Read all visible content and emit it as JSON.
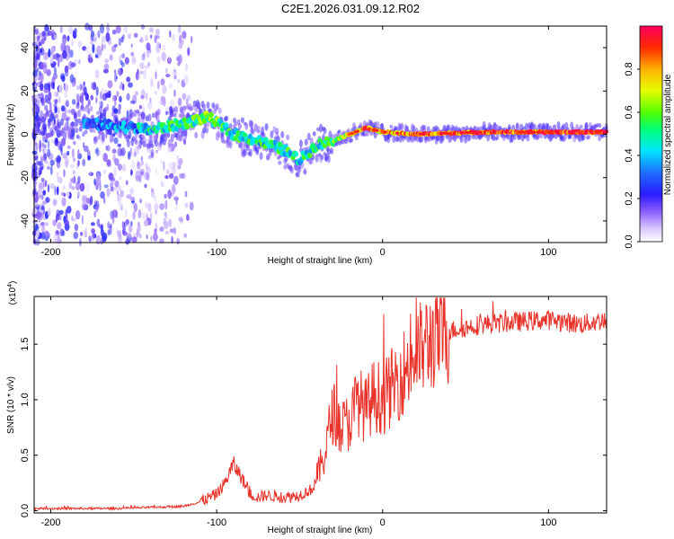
{
  "title": "C2E1.2026.031.09.12.R02",
  "colors": {
    "snr_line": "#e8322a",
    "spectro_low": "#b9a4ff",
    "spectro_mid": "#1f45ff",
    "spectro_high": "#e0ff00"
  },
  "chart_data": [
    {
      "type": "heatmap",
      "name": "spectrogram",
      "xlabel": "Height of straight line (km)",
      "ylabel": "Frequency (Hz)",
      "xlim": [
        -210,
        135
      ],
      "ylim": [
        -50,
        50
      ],
      "xticks": [
        -200,
        -100,
        0,
        100
      ],
      "xtick_labels": [
        "-200",
        "-100",
        "0",
        "100"
      ],
      "yticks": [
        -40,
        -20,
        0,
        20,
        40
      ],
      "ytick_labels": [
        "-40",
        "-20",
        "0",
        "20",
        "40"
      ],
      "colorbar": {
        "label": "Normalized spectral amplitude",
        "range": [
          0,
          1
        ],
        "ticks": [
          0.0,
          0.2,
          0.4,
          0.6,
          0.8
        ],
        "tick_labels": [
          "0.0",
          "0.2",
          "0.4",
          "0.6",
          "0.8"
        ]
      },
      "ridge": {
        "x": [
          -200,
          -180,
          -160,
          -140,
          -120,
          -105,
          -90,
          -75,
          -60,
          -50,
          -40,
          -30,
          -20,
          -10,
          0,
          20,
          60,
          100,
          135
        ],
        "freq_hz": [
          8,
          5,
          4,
          2,
          5,
          8,
          0,
          -3,
          -7,
          -12,
          -5,
          -3,
          0,
          3,
          1,
          0,
          1,
          1,
          1
        ],
        "amplitude": [
          0.2,
          0.25,
          0.3,
          0.45,
          0.5,
          0.55,
          0.5,
          0.45,
          0.5,
          0.45,
          0.45,
          0.55,
          0.7,
          0.85,
          0.75,
          0.85,
          0.85,
          0.9,
          0.95
        ]
      }
    },
    {
      "type": "line",
      "name": "snr",
      "xlabel": "Height of straight line (km)",
      "ylabel": "SNR (10 * v/v)",
      "y_multiplier_label": "(x10",
      "y_multiplier_exp": "4",
      "y_multiplier_close": ")",
      "xlim": [
        -210,
        135
      ],
      "ylim": [
        -0.02,
        1.93
      ],
      "xticks": [
        -200,
        -100,
        0,
        100
      ],
      "xtick_labels": [
        "-200",
        "-100",
        "0",
        "100"
      ],
      "yticks": [
        0.0,
        0.5,
        1.0,
        1.5
      ],
      "ytick_labels": [
        "0.0",
        "0.5",
        "1.0",
        "1.5"
      ],
      "series": [
        {
          "name": "SNR",
          "x": [
            -210,
            -160,
            -120,
            -110,
            -100,
            -95,
            -90,
            -85,
            -80,
            -75,
            -70,
            -60,
            -50,
            -42,
            -35,
            -30,
            -25,
            -20,
            -15,
            -10,
            -5,
            0,
            10,
            20,
            30,
            40,
            60,
            80,
            100,
            120,
            135
          ],
          "y": [
            0.02,
            0.02,
            0.04,
            0.08,
            0.15,
            0.25,
            0.42,
            0.3,
            0.15,
            0.12,
            0.14,
            0.12,
            0.14,
            0.2,
            0.5,
            0.9,
            0.75,
            0.8,
            1.0,
            0.9,
            1.05,
            1.0,
            1.2,
            1.4,
            1.55,
            1.62,
            1.68,
            1.7,
            1.72,
            1.68,
            1.72
          ]
        }
      ]
    }
  ]
}
